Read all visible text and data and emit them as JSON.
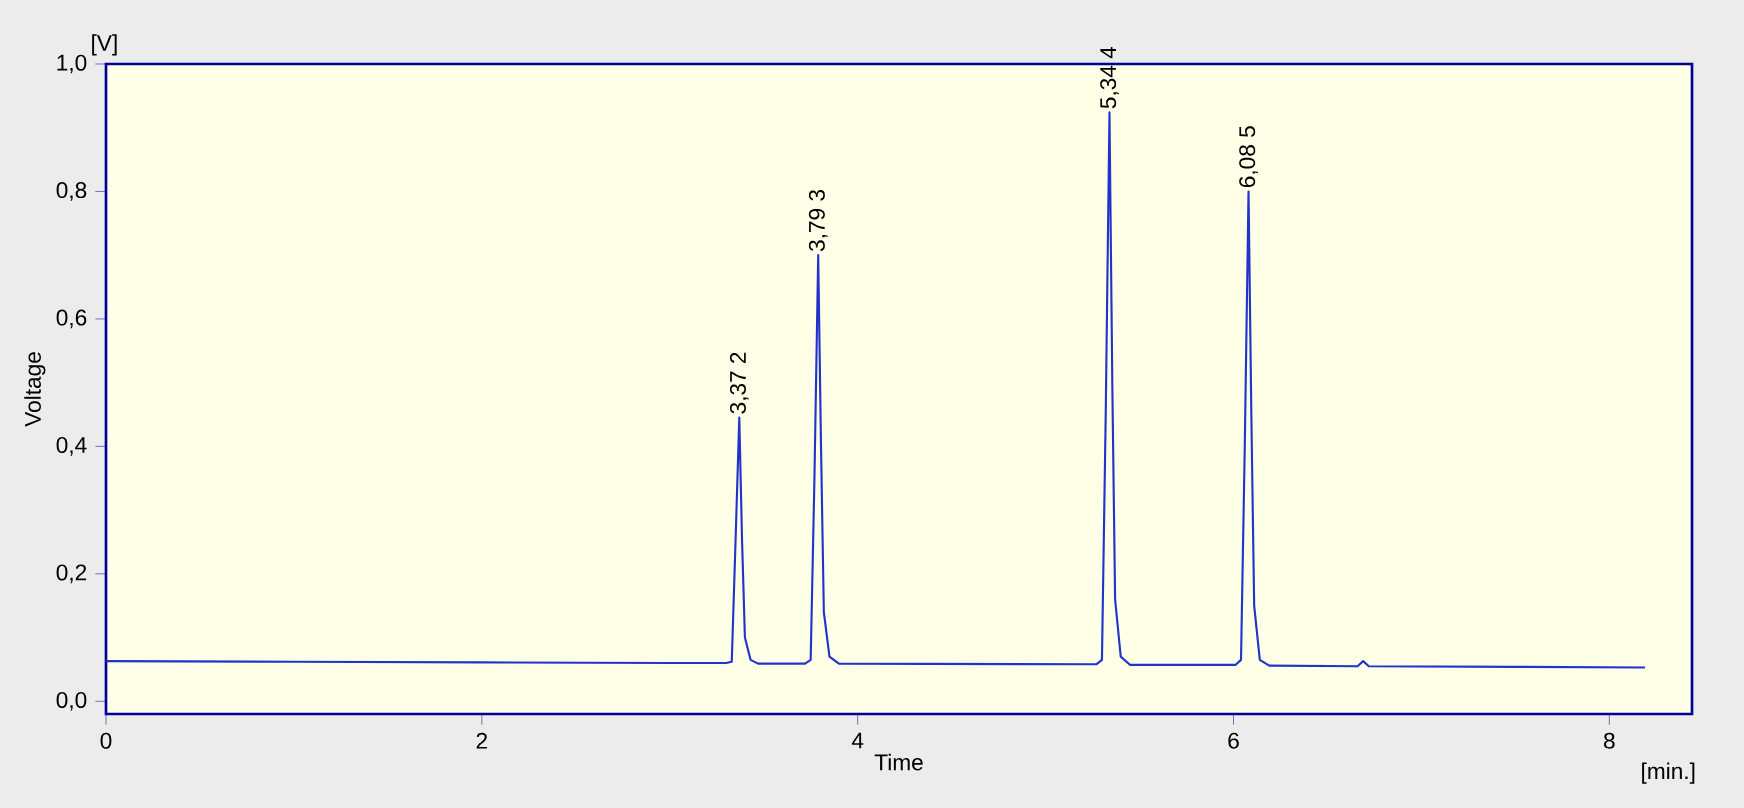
{
  "chart_data": {
    "type": "line",
    "xlabel": "Time",
    "ylabel": "Voltage",
    "x": [
      0,
      1,
      2,
      3,
      3.3,
      3.33,
      3.35,
      3.37,
      3.385,
      3.4,
      3.43,
      3.47,
      3.72,
      3.75,
      3.77,
      3.79,
      3.805,
      3.82,
      3.85,
      3.9,
      5.27,
      5.3,
      5.32,
      5.34,
      5.355,
      5.37,
      5.4,
      5.45,
      6.01,
      6.04,
      6.06,
      6.08,
      6.095,
      6.11,
      6.14,
      6.19,
      6.66,
      6.69,
      6.72,
      7.5,
      8.19
    ],
    "series": [
      {
        "color": "#2233cc",
        "values": [
          0.063,
          0.062,
          0.061,
          0.06,
          0.06,
          0.062,
          0.25,
          0.445,
          0.25,
          0.1,
          0.065,
          0.059,
          0.059,
          0.065,
          0.35,
          0.7,
          0.4,
          0.14,
          0.07,
          0.059,
          0.058,
          0.065,
          0.45,
          0.924,
          0.5,
          0.16,
          0.07,
          0.057,
          0.057,
          0.065,
          0.4,
          0.8,
          0.45,
          0.15,
          0.065,
          0.056,
          0.055,
          0.063,
          0.055,
          0.054,
          0.053
        ]
      }
    ],
    "xlim": [
      0,
      8.44
    ],
    "ylim": [
      -0.02,
      1.0
    ],
    "xticks": [
      0,
      2,
      4,
      6,
      8
    ],
    "yticks": [
      {
        "value": 0,
        "label": "0,0"
      },
      {
        "value": 0.2,
        "label": "0,2"
      },
      {
        "value": 0.4,
        "label": "0,4"
      },
      {
        "value": 0.6,
        "label": "0,6"
      },
      {
        "value": 0.8,
        "label": "0,8"
      },
      {
        "value": 1.0,
        "label": "1,0"
      }
    ],
    "annotations": [
      "[V]",
      "[min.]",
      {
        "text": "3,37  2",
        "x": 3.37,
        "y": 0.445
      },
      {
        "text": "3,79  3",
        "x": 3.79,
        "y": 0.7
      },
      {
        "text": "5,34  4",
        "x": 5.34,
        "y": 0.924
      },
      {
        "text": "6,08  5",
        "x": 6.08,
        "y": 0.8
      }
    ],
    "grid": false,
    "marker": "none",
    "line_style": "solid"
  }
}
